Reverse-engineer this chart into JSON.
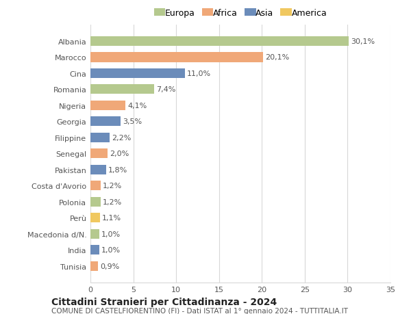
{
  "categories": [
    "Albania",
    "Marocco",
    "Cina",
    "Romania",
    "Nigeria",
    "Georgia",
    "Filippine",
    "Senegal",
    "Pakistan",
    "Costa d'Avorio",
    "Polonia",
    "Perù",
    "Macedonia d/N.",
    "India",
    "Tunisia"
  ],
  "values": [
    30.1,
    20.1,
    11.0,
    7.4,
    4.1,
    3.5,
    2.2,
    2.0,
    1.8,
    1.2,
    1.2,
    1.1,
    1.0,
    1.0,
    0.9
  ],
  "labels": [
    "30,1%",
    "20,1%",
    "11,0%",
    "7,4%",
    "4,1%",
    "3,5%",
    "2,2%",
    "2,0%",
    "1,8%",
    "1,2%",
    "1,2%",
    "1,1%",
    "1,0%",
    "1,0%",
    "0,9%"
  ],
  "continents": [
    "Europa",
    "Africa",
    "Asia",
    "Europa",
    "Africa",
    "Asia",
    "Asia",
    "Africa",
    "Asia",
    "Africa",
    "Europa",
    "America",
    "Europa",
    "Asia",
    "Africa"
  ],
  "continent_colors": {
    "Europa": "#b5c98e",
    "Africa": "#f0a878",
    "Asia": "#6b8cba",
    "America": "#f0c860"
  },
  "legend_order": [
    "Europa",
    "Africa",
    "Asia",
    "America"
  ],
  "title": "Cittadini Stranieri per Cittadinanza - 2024",
  "subtitle": "COMUNE DI CASTELFIORENTINO (FI) - Dati ISTAT al 1° gennaio 2024 - TUTTITALIA.IT",
  "xlim": [
    0,
    35
  ],
  "xticks": [
    0,
    5,
    10,
    15,
    20,
    25,
    30,
    35
  ],
  "background_color": "#ffffff",
  "grid_color": "#d8d8d8",
  "bar_height": 0.6,
  "title_fontsize": 10,
  "subtitle_fontsize": 7.5,
  "label_fontsize": 8,
  "tick_fontsize": 8,
  "legend_fontsize": 9
}
